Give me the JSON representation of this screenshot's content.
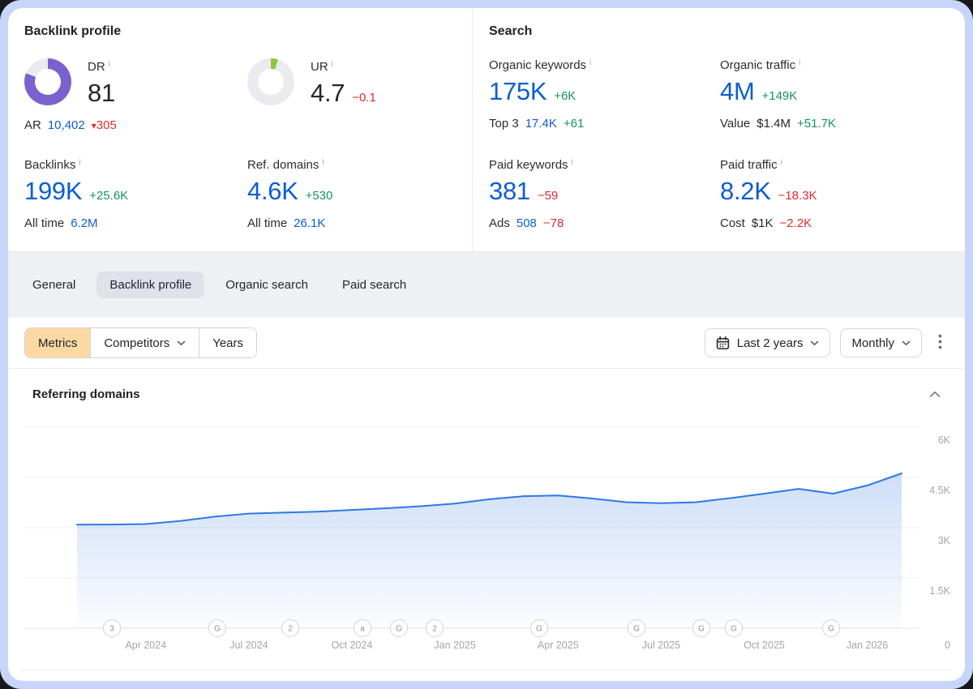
{
  "icons": {
    "info": "i",
    "triangle_down": "▾"
  },
  "colors": {
    "blue": "#0d5ed2",
    "green": "#14945a",
    "red": "#e02b30",
    "purple": "#7b61ce",
    "lime": "#8ec63f",
    "gauge_track": "#e9ebee"
  },
  "backlink_profile": {
    "title": "Backlink profile",
    "dr": {
      "label": "DR",
      "value": "81",
      "gauge_pct": 81
    },
    "ur": {
      "label": "UR",
      "value": "4.7",
      "delta": "−0.1",
      "gauge_pct": 5
    },
    "ar": {
      "label": "AR",
      "value": "10,402",
      "delta": "305"
    },
    "backlinks": {
      "label": "Backlinks",
      "value": "199K",
      "delta": "+25.6K",
      "sub_label": "All time",
      "sub_value": "6.2M"
    },
    "ref_domains": {
      "label": "Ref. domains",
      "value": "4.6K",
      "delta": "+530",
      "sub_label": "All time",
      "sub_value": "26.1K"
    }
  },
  "search": {
    "title": "Search",
    "organic_keywords": {
      "label": "Organic keywords",
      "value": "175K",
      "delta": "+6K",
      "sub_label": "Top 3",
      "sub_value": "17.4K",
      "sub_delta": "+61"
    },
    "organic_traffic": {
      "label": "Organic traffic",
      "value": "4M",
      "delta": "+149K",
      "sub_label": "Value",
      "sub_value": "$1.4M",
      "sub_delta": "+51.7K"
    },
    "paid_keywords": {
      "label": "Paid keywords",
      "value": "381",
      "delta": "−59",
      "sub_label": "Ads",
      "sub_value": "508",
      "sub_delta": "−78"
    },
    "paid_traffic": {
      "label": "Paid traffic",
      "value": "8.2K",
      "delta": "−18.3K",
      "sub_label": "Cost",
      "sub_value": "$1K",
      "sub_delta": "−2.2K"
    }
  },
  "tabs": {
    "items": [
      {
        "label": "General"
      },
      {
        "label": "Backlink profile"
      },
      {
        "label": "Organic search"
      },
      {
        "label": "Paid search"
      }
    ],
    "active": "Backlink profile"
  },
  "toolbar": {
    "metrics": "Metrics",
    "competitors": "Competitors",
    "years": "Years",
    "date_range": "Last 2 years",
    "granularity": "Monthly"
  },
  "chart_section": {
    "title": "Referring domains"
  },
  "chart_data": {
    "type": "area",
    "title": "Referring domains",
    "months": [
      "Feb 2024",
      "Mar 2024",
      "Apr 2024",
      "May 2024",
      "Jun 2024",
      "Jul 2024",
      "Aug 2024",
      "Sep 2024",
      "Oct 2024",
      "Nov 2024",
      "Dec 2024",
      "Jan 2025",
      "Feb 2025",
      "Mar 2025",
      "Apr 2025",
      "May 2025",
      "Jun 2025",
      "Jul 2025",
      "Aug 2025",
      "Sep 2025",
      "Oct 2025",
      "Nov 2025",
      "Dec 2025",
      "Jan 2026",
      "Feb 2026"
    ],
    "values": [
      3090,
      3095,
      3110,
      3200,
      3330,
      3420,
      3450,
      3480,
      3530,
      3580,
      3640,
      3720,
      3850,
      3940,
      3960,
      3870,
      3760,
      3730,
      3760,
      3880,
      4015,
      4160,
      4015,
      4260,
      4620
    ],
    "x_ticks": [
      "Apr 2024",
      "Jul 2024",
      "Oct 2024",
      "Jan 2025",
      "Apr 2025",
      "Jul 2025",
      "Oct 2025",
      "Jan 2026"
    ],
    "x_tick_indices": [
      2,
      5,
      8,
      11,
      14,
      17,
      20,
      23
    ],
    "y_ticks": [
      "6K",
      "4.5K",
      "3K",
      "1.5K",
      "0"
    ],
    "y_tick_values": [
      6000,
      4500,
      3000,
      1500,
      0
    ],
    "ylim": [
      0,
      6000
    ],
    "grid": true,
    "legend": "none",
    "line_color": "#2e78e4",
    "fill_color": "#3478e2",
    "axis_markers": [
      {
        "label": "3",
        "x": 112
      },
      {
        "label": "G",
        "x": 242
      },
      {
        "label": "2",
        "x": 332
      },
      {
        "label": "a",
        "x": 421
      },
      {
        "label": "G",
        "x": 466
      },
      {
        "label": "2",
        "x": 510
      },
      {
        "label": "G",
        "x": 639
      },
      {
        "label": "G",
        "x": 759
      },
      {
        "label": "G",
        "x": 839
      },
      {
        "label": "G",
        "x": 879
      },
      {
        "label": "G",
        "x": 999
      }
    ]
  }
}
